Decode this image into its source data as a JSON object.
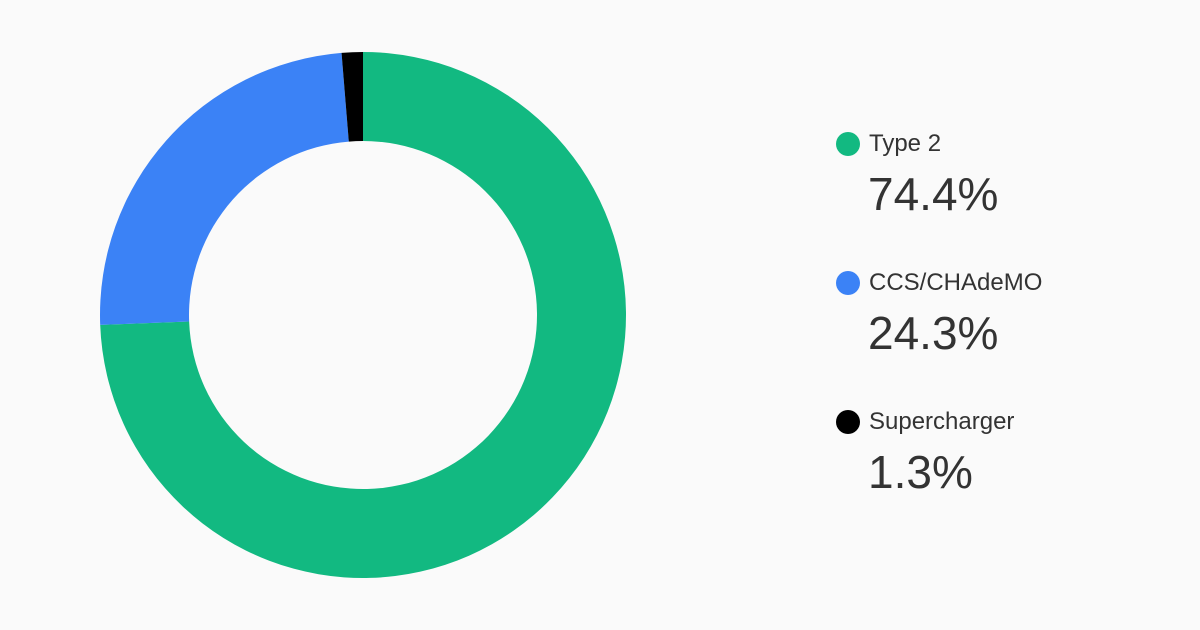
{
  "chart_data": {
    "type": "pie",
    "donut": true,
    "legend_position": "right",
    "categories": [
      "Type 2",
      "CCS/CHAdeMO",
      "Supercharger"
    ],
    "values": [
      74.4,
      24.3,
      1.3
    ],
    "value_labels": [
      "74.4%",
      "24.3%",
      "1.3%"
    ],
    "colors": [
      "#12b981",
      "#3b82f6",
      "#000000"
    ],
    "legend": [
      {
        "name": "Type 2",
        "value": "74.4%",
        "color": "#12b981"
      },
      {
        "name": "CCS/CHAdeMO",
        "value": "24.3%",
        "color": "#3b82f6"
      },
      {
        "name": "Supercharger",
        "value": "1.3%",
        "color": "#000000"
      }
    ]
  }
}
